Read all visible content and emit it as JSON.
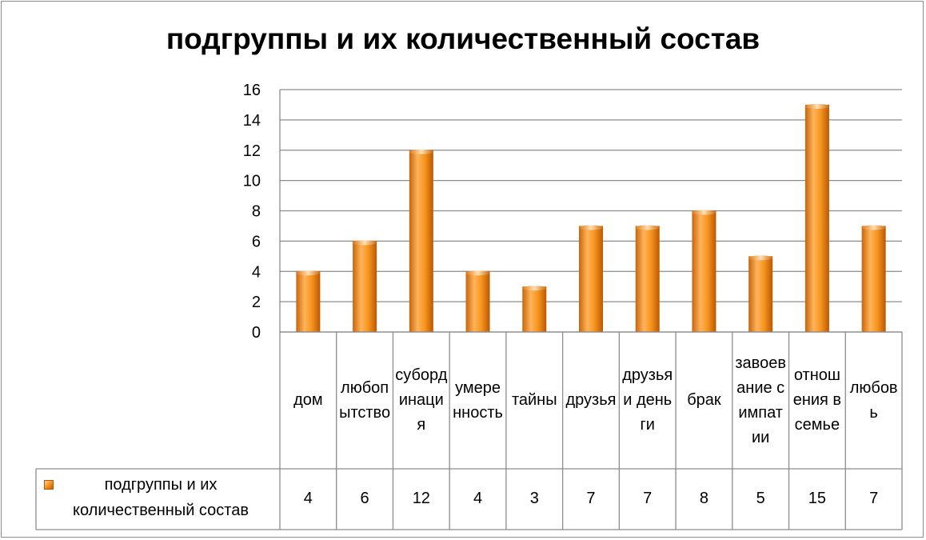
{
  "chart_data": {
    "type": "bar",
    "title": "подгруппы и их количественный состав",
    "categories": [
      "дом",
      "любопытство",
      "субординация",
      "умеренность",
      "тайны",
      "друзья",
      "друзья и деньги",
      "брак",
      "завоевание симпатии",
      "отношения в семье",
      "любовь"
    ],
    "series": [
      {
        "name": "подгруппы и их количественный состав",
        "values": [
          4,
          6,
          12,
          4,
          3,
          7,
          7,
          8,
          5,
          15,
          7
        ]
      }
    ],
    "ylim": [
      0,
      16
    ],
    "yticks": [
      "0",
      "2",
      "4",
      "6",
      "8",
      "10",
      "12",
      "14",
      "16"
    ],
    "grid": true,
    "legend": "data-table",
    "bar_color": "#f7941d"
  }
}
